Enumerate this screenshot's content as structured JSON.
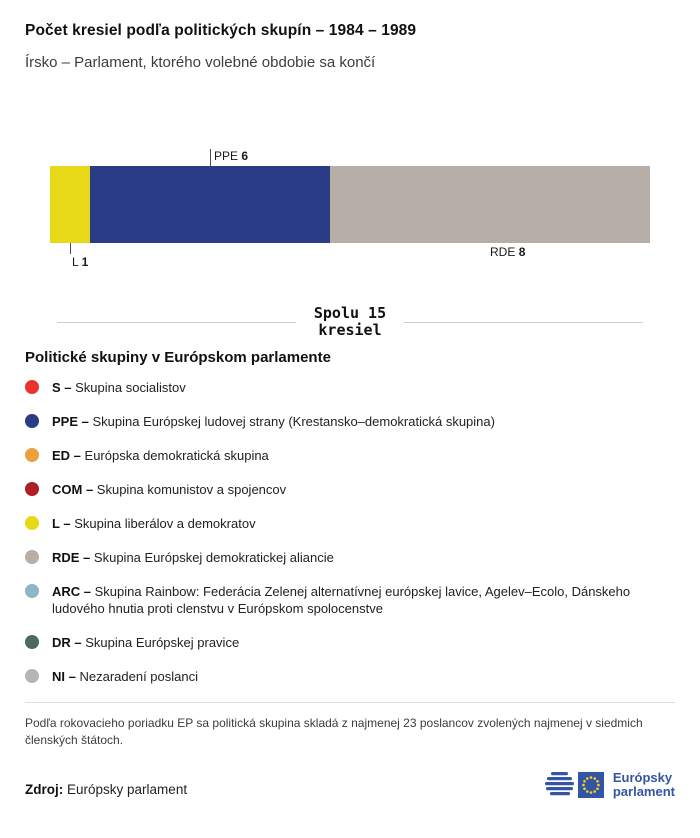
{
  "header": {
    "title": "Počet kresiel podľa politických skupín – 1984 – 1989",
    "subtitle": "Írsko – Parlament, ktorého volebné obdobie sa končí"
  },
  "chart_data": {
    "type": "bar",
    "orientation": "horizontal-stacked",
    "title": "Počet kresiel podľa politických skupín – 1984 – 1989",
    "total_seats": 15,
    "total_label_line1": "Spolu 15",
    "total_label_line2": "kresiel",
    "segments": [
      {
        "label": "L",
        "value": 1,
        "color": "#e7d918",
        "label_position": "bottom-tick"
      },
      {
        "label": "PPE",
        "value": 6,
        "color": "#2b3c87",
        "label_position": "top-tick"
      },
      {
        "label": "RDE",
        "value": 8,
        "color": "#b7afa7",
        "label_position": "bottom"
      }
    ]
  },
  "legend": {
    "title": "Politické skupiny v Európskom parlamente",
    "items": [
      {
        "key": "S –",
        "label": "Skupina socialistov",
        "color": "#e8352b"
      },
      {
        "key": "PPE –",
        "label": "Skupina Európskej ludovej strany (Krestansko–demokratická skupina)",
        "color": "#2b3c87"
      },
      {
        "key": "ED –",
        "label": "Európska demokratická skupina",
        "color": "#eaa13e"
      },
      {
        "key": "COM –",
        "label": "Skupina komunistov a spojencov",
        "color": "#ad1f23"
      },
      {
        "key": "L –",
        "label": "Skupina liberálov a demokratov",
        "color": "#e7d918"
      },
      {
        "key": "RDE –",
        "label": "Skupina Európskej demokratickej aliancie",
        "color": "#b7afa7"
      },
      {
        "key": "ARC –",
        "label": "Skupina Rainbow: Federácia Zelenej alternatívnej európskej lavice, Agelev–Ecolo, Dánskeho ludového hnutia proti clenstvu v Európskom spolocenstve",
        "color": "#8fb5c9"
      },
      {
        "key": "DR –",
        "label": "Skupina Európskej pravice",
        "color": "#4e6a5d"
      },
      {
        "key": "NI –",
        "label": "Nezaradení poslanci",
        "color": "#b5b5b5"
      }
    ]
  },
  "footnote": "Podľa rokovacieho poriadku EP sa politická skupina skladá z najmenej 23 poslancov zvolených najmenej v siedmich členských štátoch.",
  "source": {
    "label": "Zdroj:",
    "value": "Európsky parlament",
    "logo_text_line1": "Európsky",
    "logo_text_line2": "parlament"
  }
}
